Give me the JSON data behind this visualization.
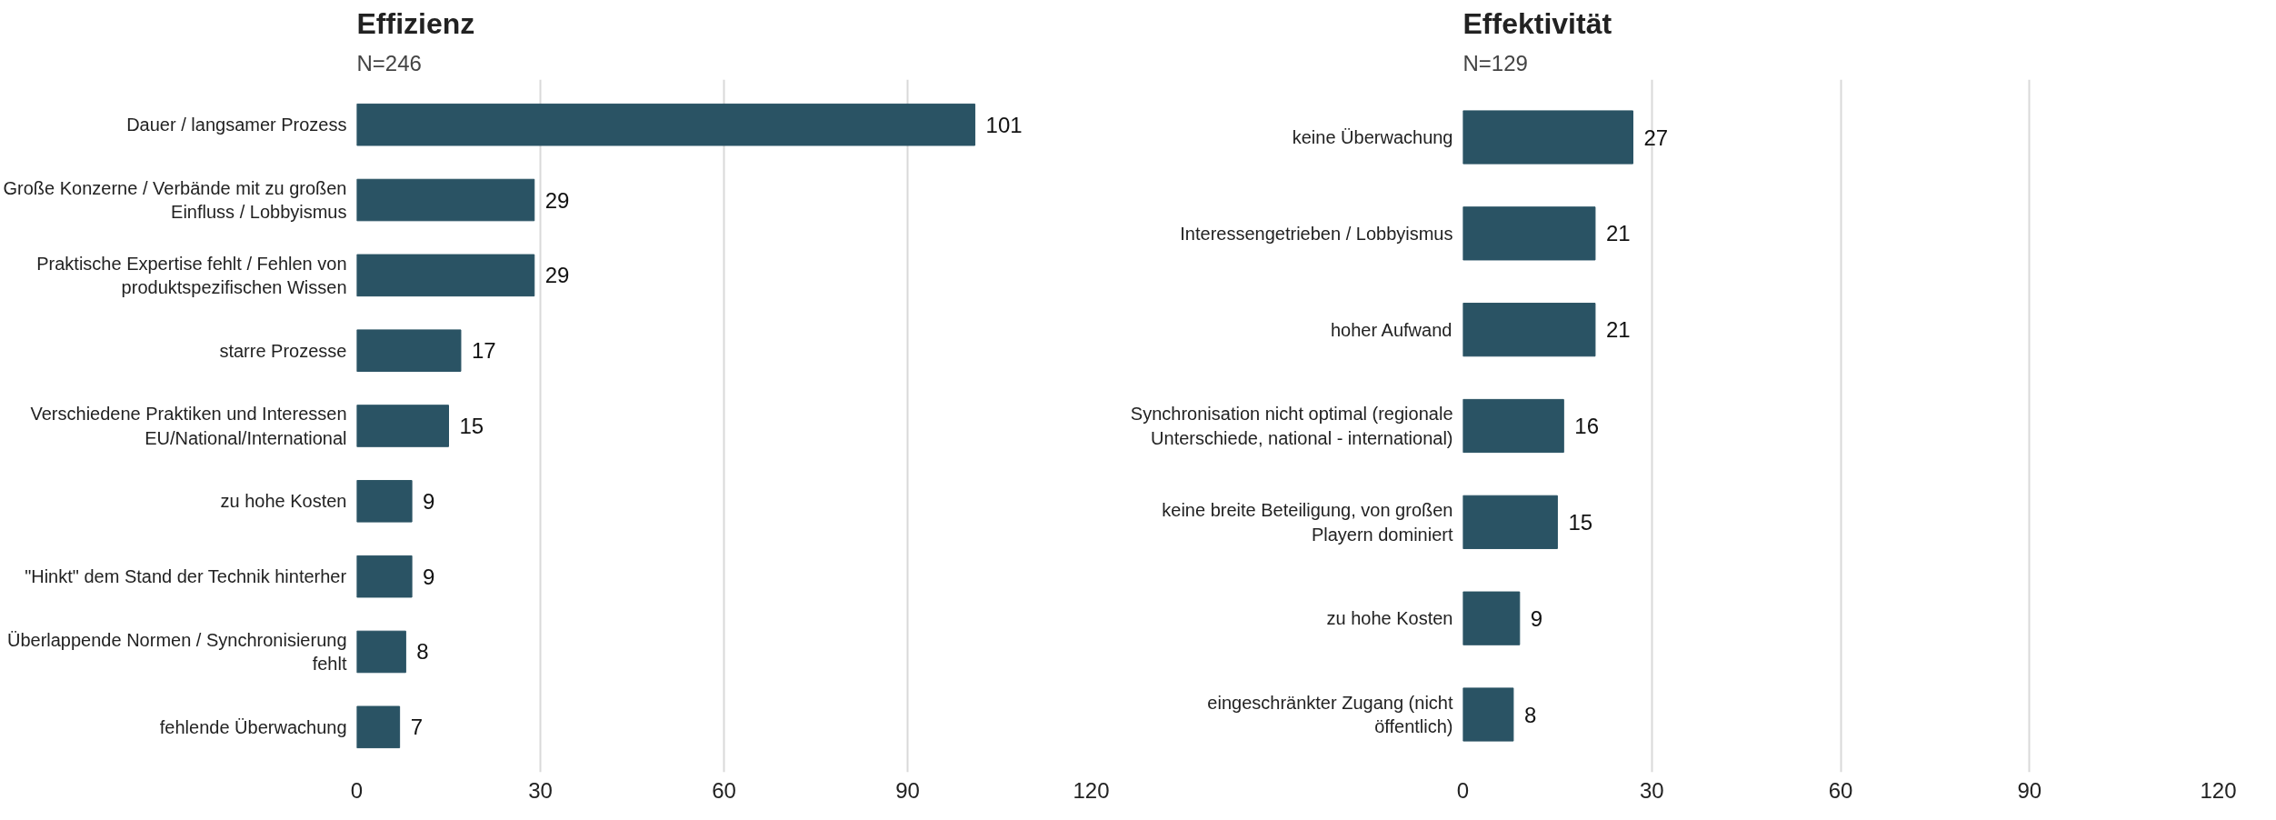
{
  "chart_data": [
    {
      "type": "bar",
      "orientation": "horizontal",
      "title": "Effizienz",
      "subtitle": "N=246",
      "categories": [
        "Dauer / langsamer Prozess",
        "Große Konzerne / Verbände mit zu großen Einfluss / Lobbyismus",
        "Praktische Expertise fehlt / Fehlen von produktspezifischen Wissen",
        "starre Prozesse",
        "Verschiedene Praktiken und Interessen EU/National/International",
        "zu hohe Kosten",
        "\"Hinkt\" dem Stand der Technik hinterher",
        "Überlappende Normen / Synchronisierung fehlt",
        "fehlende Überwachung"
      ],
      "values": [
        101,
        29,
        29,
        17,
        15,
        9,
        9,
        8,
        7
      ],
      "color": "#2a5364",
      "xlim": [
        0,
        120
      ],
      "xticks": [
        0,
        30,
        60,
        90,
        120
      ],
      "grid": "x",
      "data_labels": true
    },
    {
      "type": "bar",
      "orientation": "horizontal",
      "title": "Effektivität",
      "subtitle": "N=129",
      "categories": [
        "keine Überwachung",
        "Interessengetrieben / Lobbyismus",
        "hoher Aufwand",
        "Synchronisation nicht optimal (regionale Unterschiede, national - international)",
        "keine breite Beteiligung, von großen Playern dominiert",
        "zu hohe Kosten",
        "eingeschränkter Zugang (nicht öffentlich)"
      ],
      "values": [
        27,
        21,
        21,
        16,
        15,
        9,
        8
      ],
      "color": "#2a5364",
      "xlim": [
        0,
        120
      ],
      "xticks": [
        0,
        30,
        60,
        90,
        120
      ],
      "grid": "x",
      "data_labels": true
    }
  ]
}
